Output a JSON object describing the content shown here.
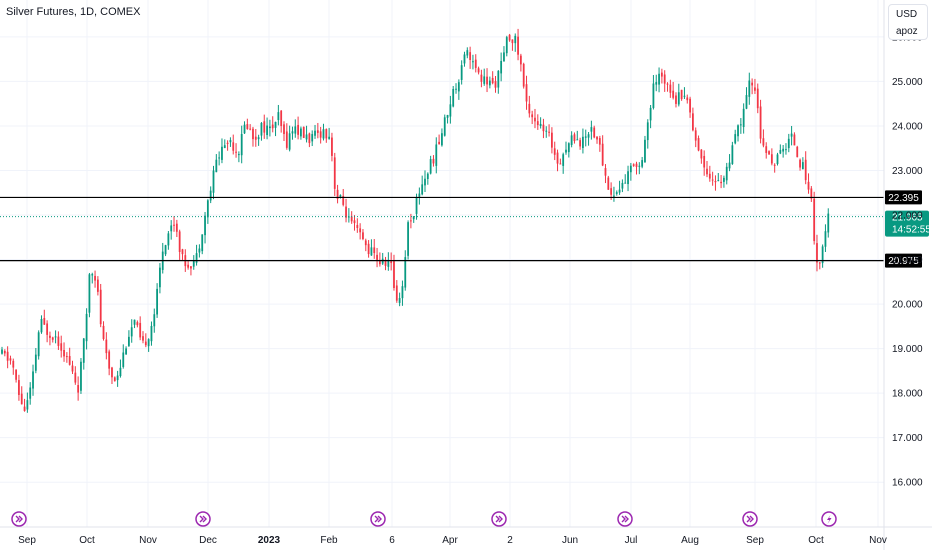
{
  "header": {
    "title": "Silver Futures, 1D, COMEX"
  },
  "price_axis": {
    "currency": "USD",
    "scale_label": "apoz"
  },
  "chart_data": {
    "type": "candlestick",
    "symbol": "Silver Futures",
    "interval": "1D",
    "exchange": "COMEX",
    "ylim": [
      15.6,
      26.2
    ],
    "y_ticks": [
      "16.000",
      "17.000",
      "18.000",
      "19.000",
      "20.000",
      "21.000",
      "22.000",
      "23.000",
      "24.000",
      "25.000",
      "26.000"
    ],
    "x_ticks": [
      {
        "label": "Sep",
        "bold": false
      },
      {
        "label": "Oct",
        "bold": false
      },
      {
        "label": "Nov",
        "bold": false
      },
      {
        "label": "Dec",
        "bold": false
      },
      {
        "label": "2023",
        "bold": true
      },
      {
        "label": "Feb",
        "bold": false
      },
      {
        "label": "6",
        "bold": false
      },
      {
        "label": "Apr",
        "bold": false
      },
      {
        "label": "2",
        "bold": false
      },
      {
        "label": "Jun",
        "bold": false
      },
      {
        "label": "Jul",
        "bold": false
      },
      {
        "label": "Aug",
        "bold": false
      },
      {
        "label": "Sep",
        "bold": false
      },
      {
        "label": "Oct",
        "bold": false
      },
      {
        "label": "Nov",
        "bold": false
      }
    ],
    "horizontal_lines": [
      {
        "price": 22.395,
        "label": "22.395",
        "color": "#000000"
      },
      {
        "price": 20.975,
        "label": "20.975",
        "color": "#000000"
      }
    ],
    "last_price": {
      "price": 21.965,
      "label": "21.965",
      "countdown": "14:52:55",
      "color": "#089981"
    },
    "up_color": "#089981",
    "down_color": "#f23645",
    "event_icons": [
      "dividend-arrow-icon",
      "dividend-arrow-icon",
      "dividend-arrow-icon",
      "dividend-arrow-icon",
      "dividend-arrow-icon",
      "dividend-arrow-icon",
      "lightning-icon"
    ],
    "close_path": [
      [
        0,
        18.9
      ],
      [
        12,
        18.7
      ],
      [
        18,
        18.0
      ],
      [
        25,
        17.6
      ],
      [
        32,
        18.2
      ],
      [
        40,
        19.6
      ],
      [
        47,
        19.4
      ],
      [
        55,
        19.3
      ],
      [
        63,
        19.0
      ],
      [
        70,
        18.6
      ],
      [
        78,
        18.1
      ],
      [
        85,
        19.3
      ],
      [
        90,
        20.9
      ],
      [
        96,
        20.6
      ],
      [
        102,
        19.3
      ],
      [
        108,
        18.6
      ],
      [
        114,
        18.3
      ],
      [
        120,
        18.6
      ],
      [
        128,
        19.3
      ],
      [
        135,
        19.6
      ],
      [
        142,
        19.0
      ],
      [
        150,
        19.4
      ],
      [
        156,
        20.0
      ],
      [
        162,
        21.2
      ],
      [
        168,
        21.6
      ],
      [
        175,
        21.9
      ],
      [
        182,
        21.0
      ],
      [
        188,
        20.9
      ],
      [
        196,
        21.0
      ],
      [
        204,
        21.9
      ],
      [
        210,
        22.5
      ],
      [
        216,
        23.2
      ],
      [
        222,
        23.5
      ],
      [
        230,
        23.7
      ],
      [
        238,
        23.4
      ],
      [
        246,
        24.1
      ],
      [
        254,
        23.7
      ],
      [
        262,
        24.0
      ],
      [
        270,
        23.9
      ],
      [
        278,
        24.2
      ],
      [
        286,
        23.6
      ],
      [
        294,
        24.0
      ],
      [
        302,
        23.8
      ],
      [
        312,
        23.7
      ],
      [
        322,
        23.9
      ],
      [
        330,
        23.8
      ],
      [
        336,
        22.4
      ],
      [
        342,
        22.3
      ],
      [
        350,
        21.8
      ],
      [
        358,
        21.6
      ],
      [
        366,
        21.3
      ],
      [
        374,
        21.1
      ],
      [
        382,
        20.9
      ],
      [
        390,
        21.0
      ],
      [
        396,
        20.1
      ],
      [
        402,
        20.3
      ],
      [
        408,
        21.8
      ],
      [
        414,
        22.1
      ],
      [
        420,
        22.6
      ],
      [
        426,
        22.9
      ],
      [
        432,
        23.2
      ],
      [
        440,
        23.7
      ],
      [
        446,
        24.2
      ],
      [
        452,
        24.7
      ],
      [
        458,
        25.0
      ],
      [
        464,
        25.7
      ],
      [
        470,
        25.6
      ],
      [
        478,
        25.1
      ],
      [
        486,
        25.0
      ],
      [
        494,
        24.9
      ],
      [
        502,
        25.4
      ],
      [
        508,
        26.0
      ],
      [
        514,
        26.0
      ],
      [
        520,
        25.5
      ],
      [
        526,
        24.5
      ],
      [
        534,
        24.2
      ],
      [
        542,
        23.9
      ],
      [
        550,
        23.7
      ],
      [
        558,
        23.2
      ],
      [
        566,
        23.5
      ],
      [
        574,
        23.8
      ],
      [
        582,
        23.6
      ],
      [
        590,
        24.0
      ],
      [
        598,
        23.7
      ],
      [
        606,
        22.8
      ],
      [
        612,
        22.4
      ],
      [
        620,
        22.6
      ],
      [
        628,
        22.9
      ],
      [
        634,
        23.2
      ],
      [
        640,
        23.1
      ],
      [
        648,
        24.1
      ],
      [
        654,
        24.9
      ],
      [
        660,
        25.1
      ],
      [
        668,
        25.0
      ],
      [
        676,
        24.6
      ],
      [
        684,
        24.8
      ],
      [
        690,
        24.3
      ],
      [
        696,
        23.7
      ],
      [
        702,
        23.2
      ],
      [
        710,
        22.9
      ],
      [
        716,
        22.7
      ],
      [
        722,
        22.8
      ],
      [
        730,
        23.2
      ],
      [
        736,
        23.8
      ],
      [
        744,
        24.3
      ],
      [
        750,
        25.0
      ],
      [
        756,
        24.8
      ],
      [
        762,
        23.5
      ],
      [
        768,
        23.3
      ],
      [
        776,
        23.2
      ],
      [
        784,
        23.5
      ],
      [
        792,
        23.8
      ],
      [
        800,
        23.2
      ],
      [
        806,
        22.9
      ],
      [
        812,
        22.2
      ],
      [
        816,
        21.0
      ],
      [
        820,
        20.9
      ],
      [
        824,
        21.4
      ],
      [
        828,
        21.965
      ]
    ]
  }
}
